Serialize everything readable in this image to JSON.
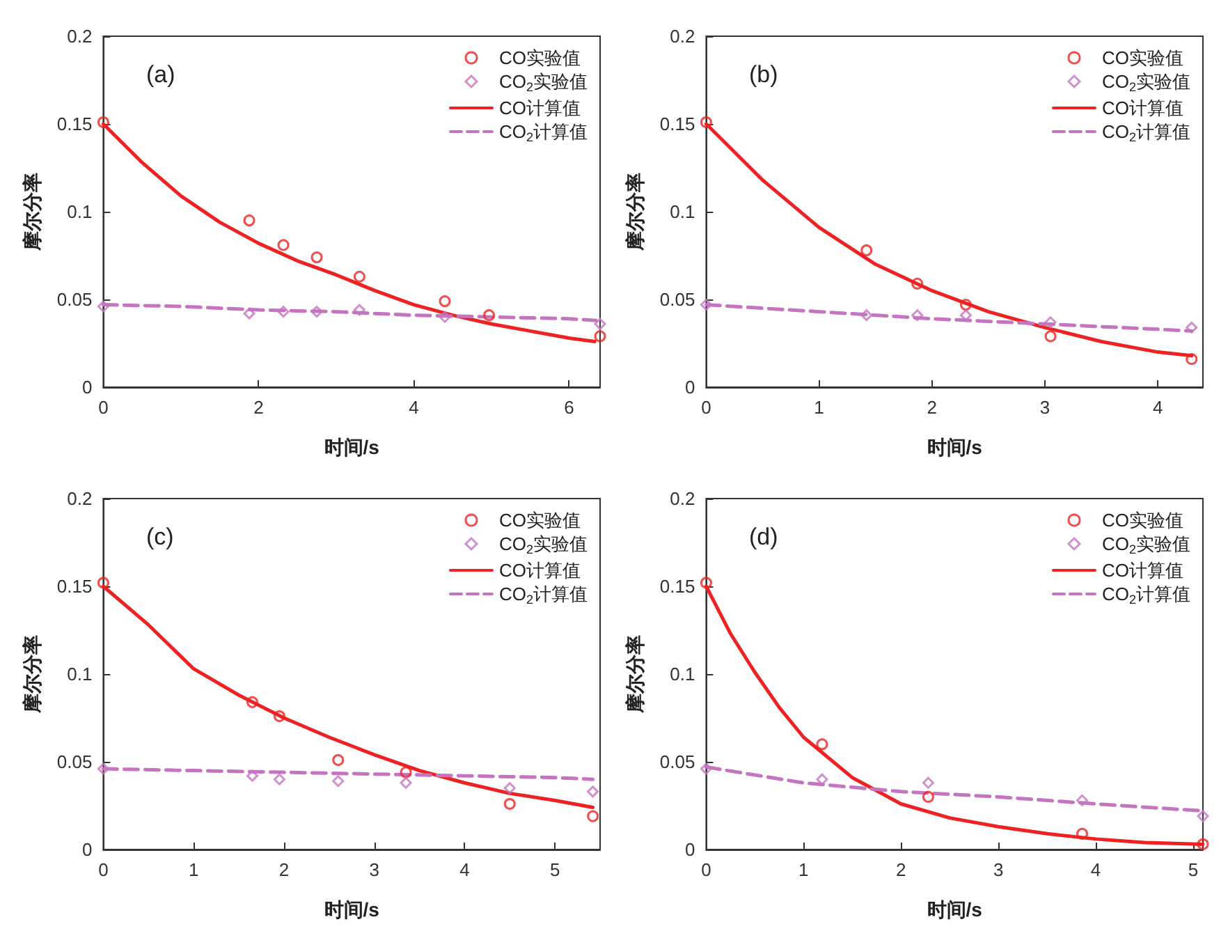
{
  "chart_data": [
    {
      "type": "line",
      "title": "(a)",
      "xlabel": "时间/s",
      "ylabel": "摩尔分率",
      "xlim": [
        0,
        6.4
      ],
      "xticks": [
        0,
        2,
        4,
        6
      ],
      "ylim": [
        0,
        0.2
      ],
      "yticks": [
        0,
        0.05,
        0.1,
        0.15,
        0.2
      ],
      "legend": "top right",
      "grid": false,
      "series": [
        {
          "name": "CO实验值",
          "type": "scatter",
          "marker": "circle",
          "color": "#ee2222",
          "x": [
            0,
            1.88,
            2.32,
            2.75,
            3.3,
            4.4,
            4.97,
            6.4
          ],
          "values": [
            0.151,
            0.095,
            0.081,
            0.074,
            0.063,
            0.049,
            0.041,
            0.029
          ]
        },
        {
          "name": "CO$_{2}$实验值",
          "type": "scatter",
          "marker": "diamond",
          "color": "#c474c0",
          "x": [
            0,
            1.88,
            2.32,
            2.75,
            3.3,
            4.4,
            6.4
          ],
          "values": [
            0.046,
            0.042,
            0.043,
            0.043,
            0.044,
            0.04,
            0.036
          ]
        },
        {
          "name": "CO计算值",
          "type": "line",
          "marker": "none",
          "line_style": "solid",
          "color": "#ee2222",
          "x": [
            0,
            0.5,
            1,
            1.5,
            2,
            2.5,
            3,
            3.5,
            4,
            4.5,
            5,
            5.5,
            6,
            6.33
          ],
          "values": [
            0.15,
            0.128,
            0.109,
            0.094,
            0.082,
            0.072,
            0.064,
            0.055,
            0.047,
            0.041,
            0.036,
            0.032,
            0.028,
            0.026
          ]
        },
        {
          "name": "CO$_{2}$计算值",
          "type": "line",
          "marker": "none",
          "line_style": "dashed",
          "color": "#c474c0",
          "x": [
            0,
            1,
            2,
            3,
            4,
            5,
            6,
            6.35
          ],
          "values": [
            0.047,
            0.046,
            0.044,
            0.043,
            0.041,
            0.04,
            0.039,
            0.038
          ]
        }
      ]
    },
    {
      "type": "line",
      "title": "(b)",
      "xlabel": "时间/s",
      "ylabel": "摩尔分率",
      "xlim": [
        0,
        4.4
      ],
      "xticks": [
        0,
        1,
        2,
        3,
        4
      ],
      "ylim": [
        0,
        0.2
      ],
      "yticks": [
        0,
        0.05,
        0.1,
        0.15,
        0.2
      ],
      "legend": "top right",
      "grid": false,
      "series": [
        {
          "name": "CO实验值",
          "type": "scatter",
          "marker": "circle",
          "color": "#ee2222",
          "x": [
            0,
            1.42,
            1.87,
            2.3,
            3.05,
            4.3
          ],
          "values": [
            0.151,
            0.078,
            0.059,
            0.047,
            0.029,
            0.016
          ]
        },
        {
          "name": "CO$_{2}$实验值",
          "type": "scatter",
          "marker": "diamond",
          "color": "#c474c0",
          "x": [
            0,
            1.42,
            1.87,
            2.3,
            3.05,
            4.3
          ],
          "values": [
            0.047,
            0.041,
            0.041,
            0.041,
            0.037,
            0.034
          ]
        },
        {
          "name": "CO计算值",
          "type": "line",
          "marker": "none",
          "line_style": "solid",
          "color": "#ee2222",
          "x": [
            0,
            0.5,
            1,
            1.5,
            2,
            2.5,
            3,
            3.5,
            4,
            4.3
          ],
          "values": [
            0.15,
            0.118,
            0.091,
            0.07,
            0.055,
            0.043,
            0.034,
            0.026,
            0.02,
            0.018
          ]
        },
        {
          "name": "CO$_{2}$计算值",
          "type": "line",
          "marker": "none",
          "line_style": "dashed",
          "color": "#c474c0",
          "x": [
            0,
            1,
            2,
            3,
            4,
            4.3
          ],
          "values": [
            0.047,
            0.043,
            0.039,
            0.036,
            0.033,
            0.032
          ]
        }
      ]
    },
    {
      "type": "line",
      "title": "(c)",
      "xlabel": "时间/s",
      "ylabel": "摩尔分率",
      "xlim": [
        0,
        5.5
      ],
      "xticks": [
        0,
        1,
        2,
        3,
        4,
        5
      ],
      "ylim": [
        0,
        0.2
      ],
      "yticks": [
        0,
        0.05,
        0.1,
        0.15,
        0.2
      ],
      "legend": "top right",
      "grid": false,
      "series": [
        {
          "name": "CO实验值",
          "type": "scatter",
          "marker": "circle",
          "color": "#ee2222",
          "x": [
            0,
            1.65,
            1.95,
            2.6,
            3.35,
            4.5,
            5.42
          ],
          "values": [
            0.152,
            0.084,
            0.076,
            0.051,
            0.044,
            0.026,
            0.019
          ]
        },
        {
          "name": "CO$_{2}$实验值",
          "type": "scatter",
          "marker": "diamond",
          "color": "#c474c0",
          "x": [
            0,
            1.65,
            1.95,
            2.6,
            3.35,
            4.5,
            5.42
          ],
          "values": [
            0.046,
            0.042,
            0.04,
            0.039,
            0.038,
            0.035,
            0.033
          ]
        },
        {
          "name": "CO计算值",
          "type": "line",
          "marker": "none",
          "line_style": "solid",
          "color": "#ee2222",
          "x": [
            0,
            0.5,
            1,
            1.5,
            2,
            2.5,
            3,
            3.5,
            4,
            4.5,
            5,
            5.42
          ],
          "values": [
            0.15,
            0.128,
            0.103,
            0.088,
            0.075,
            0.064,
            0.054,
            0.045,
            0.038,
            0.032,
            0.028,
            0.024
          ]
        },
        {
          "name": "CO$_{2}$计算值",
          "type": "line",
          "marker": "none",
          "line_style": "dashed",
          "color": "#c474c0",
          "x": [
            0,
            1,
            2,
            3,
            4,
            5,
            5.42
          ],
          "values": [
            0.046,
            0.045,
            0.044,
            0.043,
            0.042,
            0.041,
            0.04
          ]
        }
      ]
    },
    {
      "type": "line",
      "title": "(d)",
      "xlabel": "时间/s",
      "ylabel": "摩尔分率",
      "xlim": [
        0,
        5.1
      ],
      "xticks": [
        0,
        1,
        2,
        3,
        4,
        5
      ],
      "ylim": [
        0,
        0.2
      ],
      "yticks": [
        0,
        0.05,
        0.1,
        0.15,
        0.2
      ],
      "legend": "top right",
      "grid": false,
      "series": [
        {
          "name": "CO实验值",
          "type": "scatter",
          "marker": "circle",
          "color": "#ee2222",
          "x": [
            0,
            1.19,
            2.28,
            3.86,
            5.1
          ],
          "values": [
            0.152,
            0.06,
            0.03,
            0.009,
            0.003
          ]
        },
        {
          "name": "CO$_{2}$实验值",
          "type": "scatter",
          "marker": "diamond",
          "color": "#c474c0",
          "x": [
            0,
            1.19,
            2.28,
            3.86,
            5.1
          ],
          "values": [
            0.046,
            0.04,
            0.038,
            0.028,
            0.019
          ]
        },
        {
          "name": "CO计算值",
          "type": "line",
          "marker": "none",
          "line_style": "solid",
          "color": "#ee2222",
          "x": [
            0,
            0.25,
            0.5,
            0.75,
            1,
            1.5,
            2,
            2.5,
            3,
            3.5,
            4,
            4.5,
            5.1
          ],
          "values": [
            0.15,
            0.123,
            0.101,
            0.081,
            0.064,
            0.041,
            0.026,
            0.018,
            0.013,
            0.009,
            0.006,
            0.004,
            0.003
          ]
        },
        {
          "name": "CO$_{2}$计算值",
          "type": "line",
          "marker": "none",
          "line_style": "dashed",
          "color": "#c474c0",
          "x": [
            0,
            1,
            2,
            3,
            4,
            5.1
          ],
          "values": [
            0.047,
            0.038,
            0.033,
            0.03,
            0.026,
            0.022
          ]
        }
      ]
    }
  ]
}
